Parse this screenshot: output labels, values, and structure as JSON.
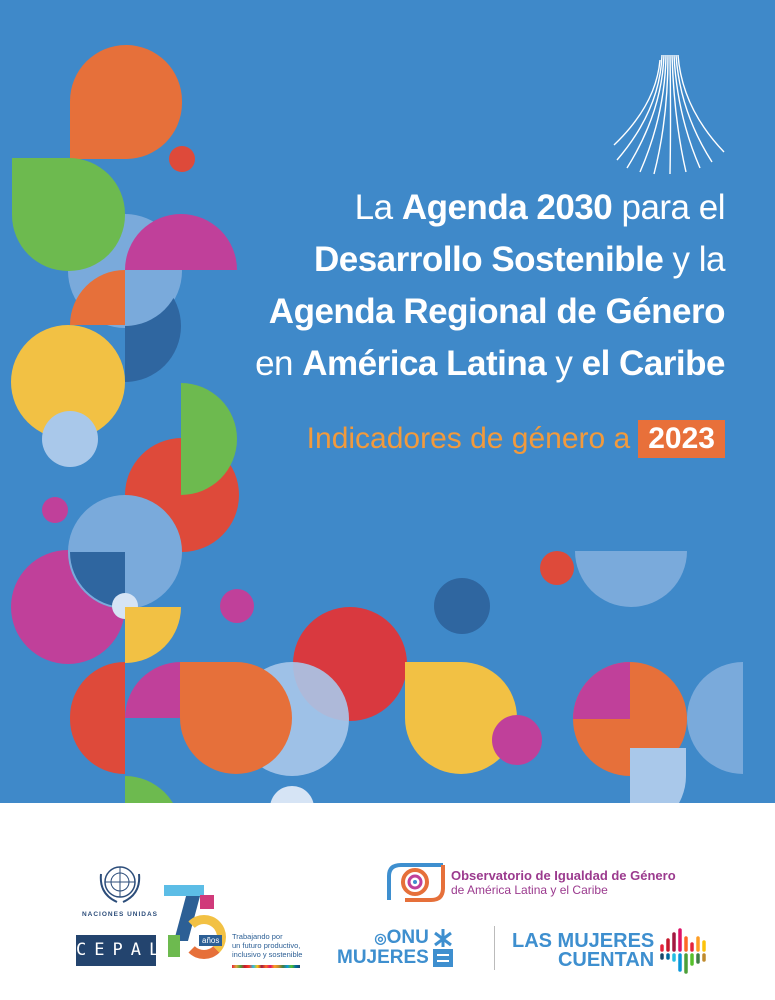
{
  "title": {
    "line1": {
      "a": "La ",
      "b": "Agenda 2030",
      "c": " para el"
    },
    "line2": {
      "a": "Desarrollo Sostenible",
      "b": " y la"
    },
    "line3": {
      "a": "Agenda Regional de Género"
    },
    "line4": {
      "a": "en ",
      "b": "América Latina",
      "c": " y ",
      "d": "el Caribe"
    }
  },
  "subtitle": {
    "text": "Indicadores de género a",
    "year": "2023"
  },
  "logos": {
    "un": "Naciones Unidas",
    "cepal": "CEPAL",
    "anniversary": {
      "number": "75",
      "label": "años",
      "tagline1": "Trabajando por",
      "tagline2": "un futuro productivo,",
      "tagline3": "inclusivo y sostenible"
    },
    "observatorio": {
      "line1": "Observatorio de Igualdad de Género",
      "line2": "de América Latina y el Caribe"
    },
    "onu_mujeres": {
      "line1": "ONU",
      "line2": "MUJERES"
    },
    "las_mujeres_cuentan": {
      "line1": "LAS MUJERES",
      "line2": "CUENTAN"
    }
  },
  "colors": {
    "background": "#3f89c9",
    "orange": "#e6703a",
    "red": "#de4a3a",
    "green": "#6dba4f",
    "magenta": "#c0409a",
    "yellow": "#f2c144",
    "lightblue": "#7aaadb",
    "darkblue": "#2f66a0"
  }
}
